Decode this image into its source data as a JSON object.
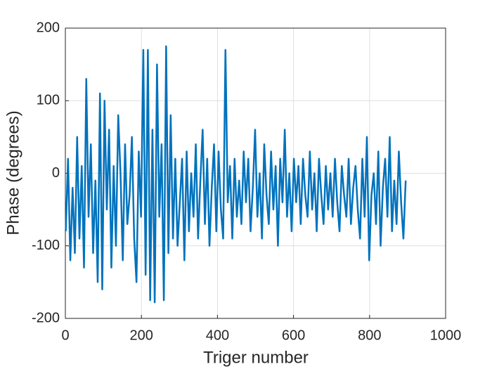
{
  "chart_data": {
    "type": "line",
    "x_label": "Triger number",
    "y_label": "Phase (degrees)",
    "x": [
      1,
      7,
      13,
      19,
      25,
      31,
      37,
      43,
      49,
      55,
      61,
      67,
      73,
      79,
      85,
      91,
      97,
      103,
      109,
      115,
      121,
      127,
      133,
      139,
      145,
      151,
      157,
      163,
      169,
      175,
      181,
      187,
      193,
      199,
      205,
      211,
      217,
      223,
      229,
      235,
      241,
      247,
      253,
      259,
      265,
      271,
      277,
      283,
      289,
      295,
      301,
      307,
      313,
      319,
      325,
      331,
      337,
      343,
      349,
      355,
      361,
      367,
      373,
      379,
      385,
      391,
      397,
      403,
      409,
      415,
      421,
      427,
      433,
      439,
      445,
      451,
      457,
      463,
      469,
      475,
      481,
      487,
      493,
      499,
      505,
      511,
      517,
      523,
      529,
      535,
      541,
      547,
      553,
      559,
      565,
      571,
      577,
      583,
      589,
      595,
      601,
      607,
      613,
      619,
      625,
      631,
      637,
      643,
      649,
      655,
      661,
      667,
      673,
      679,
      685,
      691,
      697,
      703,
      709,
      715,
      721,
      727,
      733,
      739,
      745,
      751,
      757,
      763,
      769,
      775,
      781,
      787,
      793,
      799,
      805,
      811,
      817,
      823,
      829,
      835,
      841,
      847,
      853,
      859,
      865,
      871,
      877,
      883,
      889,
      895
    ],
    "series": [
      {
        "color": "#0072bd",
        "values": [
          -80,
          20,
          -120,
          -20,
          -110,
          50,
          -90,
          10,
          -130,
          130,
          -60,
          40,
          -110,
          -10,
          -150,
          110,
          -160,
          100,
          -50,
          60,
          -130,
          10,
          -100,
          80,
          0,
          -120,
          40,
          -70,
          -30,
          50,
          -90,
          -150,
          30,
          -60,
          170,
          -140,
          170,
          -175,
          60,
          -178,
          150,
          -60,
          40,
          -175,
          175,
          -110,
          80,
          -90,
          20,
          -100,
          -40,
          20,
          -120,
          30,
          -80,
          0,
          -60,
          40,
          -90,
          -10,
          60,
          -70,
          20,
          -100,
          -20,
          40,
          -80,
          30,
          -50,
          -90,
          170,
          -40,
          10,
          -90,
          20,
          -60,
          -10,
          -70,
          30,
          -40,
          20,
          -80,
          -20,
          60,
          -60,
          0,
          -90,
          40,
          -30,
          -70,
          30,
          -50,
          10,
          -100,
          20,
          -40,
          60,
          -60,
          0,
          -80,
          20,
          -40,
          10,
          -70,
          20,
          -30,
          -60,
          30,
          -50,
          0,
          -80,
          20,
          -30,
          -70,
          10,
          -50,
          0,
          -60,
          20,
          -40,
          -80,
          10,
          -30,
          -60,
          20,
          -70,
          -20,
          10,
          -50,
          -90,
          20,
          -60,
          50,
          -120,
          -30,
          0,
          -70,
          30,
          -100,
          -20,
          20,
          -60,
          50,
          -80,
          -10,
          -70,
          30,
          -40,
          -90,
          -10
        ]
      }
    ],
    "xlim": [
      0,
      1000
    ],
    "xticks": [
      0,
      200,
      400,
      600,
      800,
      1000
    ],
    "ylim": [
      -200,
      200
    ],
    "yticks": [
      -200,
      -100,
      0,
      100,
      200
    ],
    "grid": true
  }
}
